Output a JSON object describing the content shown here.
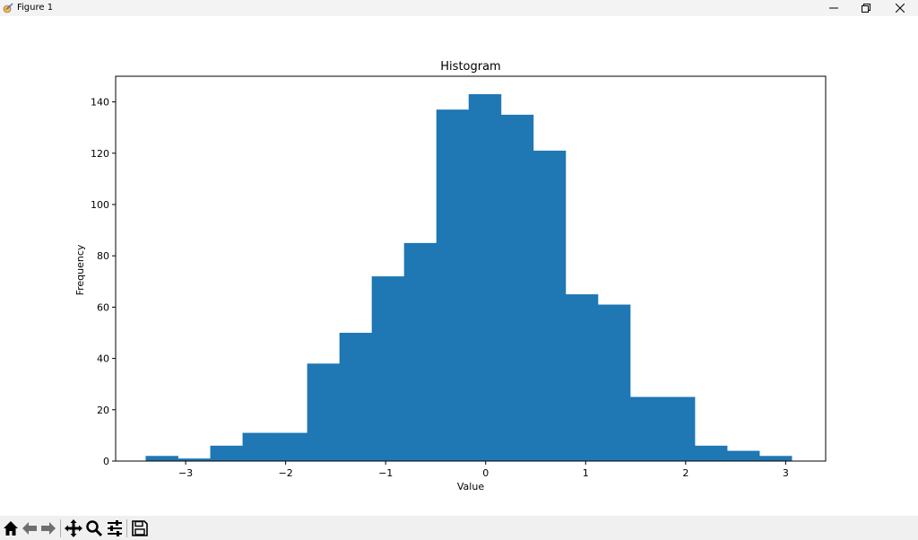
{
  "window": {
    "title": "Figure 1"
  },
  "chart_data": {
    "type": "bar",
    "title": "Histogram",
    "xlabel": "Value",
    "ylabel": "Frequency",
    "xlim": [
      -3.7,
      3.4
    ],
    "ylim": [
      0,
      150
    ],
    "xticks": [
      -3,
      -2,
      -1,
      0,
      1,
      2,
      3
    ],
    "xtick_labels": [
      "−3",
      "−2",
      "−1",
      "0",
      "1",
      "2",
      "3"
    ],
    "yticks": [
      0,
      20,
      40,
      60,
      80,
      100,
      120,
      140
    ],
    "bin_edges": [
      -3.4,
      -3.077,
      -2.754,
      -2.431,
      -2.108,
      -1.785,
      -1.462,
      -1.139,
      -0.816,
      -0.493,
      -0.17,
      0.153,
      0.476,
      0.799,
      1.122,
      1.445,
      1.768,
      2.091,
      2.414,
      2.737,
      3.06
    ],
    "values": [
      2,
      1,
      6,
      11,
      11,
      38,
      50,
      72,
      85,
      137,
      143,
      135,
      121,
      65,
      61,
      25,
      25,
      6,
      4,
      2
    ],
    "bar_color": "#1f77b4"
  },
  "toolbar": {
    "items": [
      "home-icon",
      "back-icon",
      "forward-icon",
      "pan-icon",
      "zoom-icon",
      "configure-icon",
      "save-icon"
    ]
  }
}
